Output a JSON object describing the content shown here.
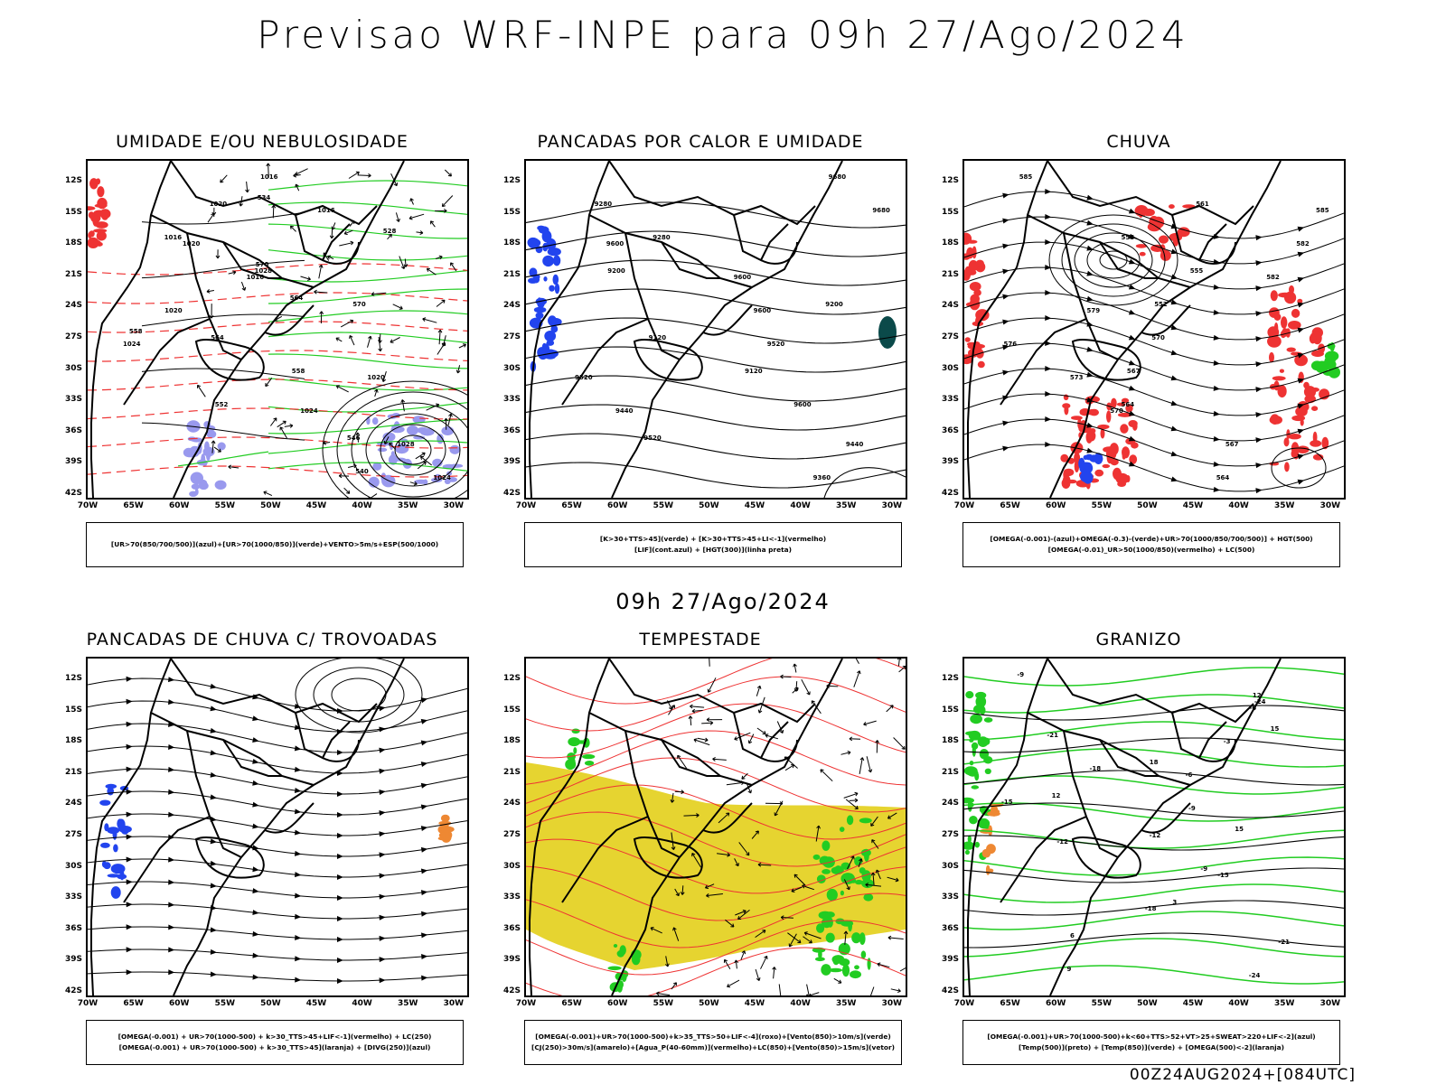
{
  "title": "Previsao WRF-INPE  para 09h 27/Ago/2024",
  "mid_time": "09h 27/Ago/2024",
  "footer": "00Z24AUG2024+[084UTC]",
  "axes": {
    "lat": [
      "12S",
      "15S",
      "18S",
      "21S",
      "24S",
      "27S",
      "30S",
      "33S",
      "36S",
      "39S",
      "42S"
    ],
    "lon": [
      "70W",
      "65W",
      "60W",
      "55W",
      "50W",
      "45W",
      "40W",
      "35W",
      "30W"
    ]
  },
  "colors": {
    "green": "#22cc22",
    "red": "#ee3333",
    "blue": "#2244ee",
    "purple": "#9999ee",
    "yellow": "#e6d430",
    "orange": "#ee8833",
    "teal": "#0b4a4a"
  },
  "panels": [
    {
      "id": "umidade",
      "title": "UMIDADE E/OU NEBULOSIDADE",
      "legend": [
        "[UR>70(850/700/500)](azul)+[UR>70(1000/850)](verde)+VENTO>5m/s+ESP(500/1000)"
      ],
      "labels": [
        "1016",
        "1016",
        "1020",
        "1016",
        "1020",
        "1024",
        "1020",
        "1024",
        "1028",
        "1024",
        "1020",
        "1016",
        "1028",
        "570",
        "564",
        "558",
        "552",
        "546",
        "540",
        "534",
        "528",
        "570",
        "564",
        "558"
      ]
    },
    {
      "id": "pancadas-calor",
      "title": "PANCADAS POR CALOR E UMIDADE",
      "legend": [
        "[K>30+TTS>45](verde) + [K>30+TTS>45+LI<-1](vermelho)",
        "[LIF](cont.azul) + [HGT(300)](linha preta)"
      ],
      "labels": [
        "9680",
        "9680",
        "9600",
        "9600",
        "9600",
        "9520",
        "9520",
        "9440",
        "9440",
        "9360",
        "9280",
        "9280",
        "9200",
        "9200",
        "9120",
        "9120",
        "9600",
        "9520"
      ]
    },
    {
      "id": "chuva",
      "title": "CHUVA",
      "legend": [
        "[OMEGA(-0.001)-(azul)+OMEGA(-0.3)-(verde)+UR>70(1000/850/700/500)] + HGT(500)",
        "[OMEGA(-0.01)_UR>50(1000/850)(vermelho) + LC(500)"
      ],
      "labels": [
        "585",
        "585",
        "582",
        "582",
        "579",
        "576",
        "573",
        "570",
        "567",
        "564",
        "561",
        "558",
        "555",
        "552",
        "570",
        "567",
        "564"
      ]
    },
    {
      "id": "pancadas-trovoadas",
      "title": "PANCADAS DE CHUVA C/ TROVOADAS",
      "legend": [
        "[OMEGA(-0.001) + UR>70(1000-500) + k>30_TTS>45+LIF<-1](vermelho) + LC(250)",
        "[OMEGA(-0.001) + UR>70(1000-500) + k>30_TTS>45](laranja) + [DIVG(250)](azul)"
      ],
      "labels": []
    },
    {
      "id": "tempestade",
      "title": "TEMPESTADE",
      "legend": [
        "[OMEGA(-0.001)+UR>70(1000-500)+k>35_TTS>50+LIF<-4](roxo)+[Vento(850)>10m/s](verde)",
        "[CJ(250)>30m/s](amarelo)+[Agua_P(40-60mm)](vermelho)+LC(850)+[Vento(850)>15m/s](vetor)"
      ],
      "labels": []
    },
    {
      "id": "granizo",
      "title": "GRANIZO",
      "legend": [
        "[OMEGA(-0.001)+UR>70(1000-500)+k<60+TTS>52+VT>25+SWEAT>220+LIF<-2](azul)",
        "[Temp(500)](preto) + [Temp(850)](verde) + [OMEGA(500)<-2](laranja)"
      ],
      "labels": [
        "-9",
        "-6",
        "-3",
        "-6",
        "-9",
        "-12",
        "-15",
        "-18",
        "-21",
        "-24",
        "-24",
        "-21",
        "-18",
        "-15",
        "-12",
        "-9",
        "3",
        "6",
        "9",
        "12",
        "15",
        "18",
        "12",
        "15"
      ]
    }
  ]
}
